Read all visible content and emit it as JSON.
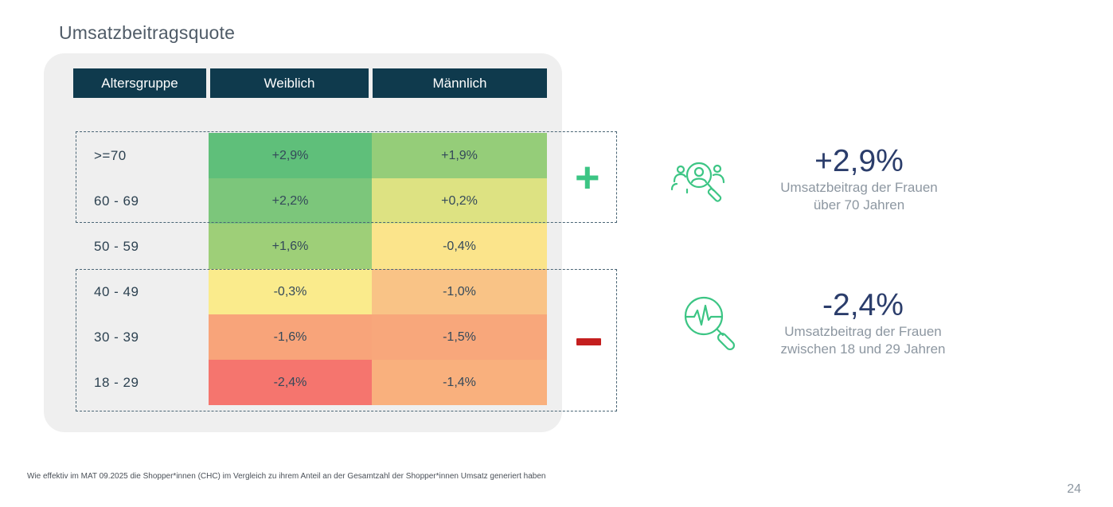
{
  "title": "Umsatzbeitragsquote",
  "chart_data": {
    "type": "heatmap",
    "title": "Umsatzbeitragsquote",
    "columns": [
      "Altersgruppe",
      "Weiblich",
      "Männlich"
    ],
    "rows": [
      {
        "age": ">=70",
        "weiblich": "+2,9%",
        "maennlich": "+1,9%",
        "weiblich_value": 2.9,
        "maennlich_value": 1.9,
        "weiblich_color": "#5fbf7a",
        "maennlich_color": "#95cd79"
      },
      {
        "age": "60 - 69",
        "weiblich": "+2,2%",
        "maennlich": "+0,2%",
        "weiblich_value": 2.2,
        "maennlich_value": 0.2,
        "weiblich_color": "#7cc67b",
        "maennlich_color": "#dde282"
      },
      {
        "age": "50 - 59",
        "weiblich": "+1,6%",
        "maennlich": "-0,4%",
        "weiblich_value": 1.6,
        "maennlich_value": -0.4,
        "weiblich_color": "#9ecf78",
        "maennlich_color": "#fbe48b"
      },
      {
        "age": "40 - 49",
        "weiblich": "-0,3%",
        "maennlich": "-1,0%",
        "weiblich_value": -0.3,
        "maennlich_value": -1.0,
        "weiblich_color": "#faeb8c",
        "maennlich_color": "#f9c386"
      },
      {
        "age": "30 - 39",
        "weiblich": "-1,6%",
        "maennlich": "-1,5%",
        "weiblich_value": -1.6,
        "maennlich_value": -1.5,
        "weiblich_color": "#f8a47a",
        "maennlich_color": "#f8a77b"
      },
      {
        "age": "18 - 29",
        "weiblich": "-2,4%",
        "maennlich": "-1,4%",
        "weiblich_value": -2.4,
        "maennlich_value": -1.4,
        "weiblich_color": "#f5756e",
        "maennlich_color": "#f9b07d"
      }
    ]
  },
  "groups": {
    "plus_sign": "+",
    "minus_sign": "−"
  },
  "kpis": [
    {
      "value": "+2,9%",
      "label_line1": "Umsatzbeitrag der Frauen",
      "label_line2": "über 70 Jahren",
      "icon": "user-search-icon"
    },
    {
      "value": "-2,4%",
      "label_line1": "Umsatzbeitrag der Frauen",
      "label_line2": "zwischen 18 und 29 Jahren",
      "icon": "heartbeat-search-icon"
    }
  ],
  "colors": {
    "header_bg": "#0f3a4d",
    "accent_green": "#3cc584",
    "accent_red": "#c41f1f",
    "kpi_value": "#2b3d6b"
  },
  "footnote": "Wie effektiv im MAT 09.2025 die Shopper*innen (CHC) im Vergleich zu ihrem Anteil an der Gesamtzahl der Shopper*innen Umsatz generiert haben",
  "page_number": "24"
}
